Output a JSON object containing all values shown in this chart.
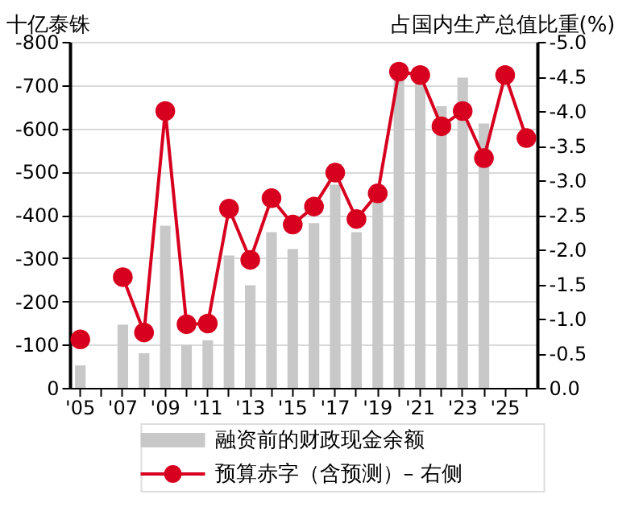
{
  "chart_data": {
    "type": "bar",
    "ylabel": "十亿泰铢",
    "y2label": "占国内生产总值比重(%)",
    "categories": [
      "'05",
      null,
      "'07",
      null,
      "'09",
      null,
      "'11",
      null,
      "'13",
      null,
      "'15",
      null,
      "'17",
      null,
      "'19",
      null,
      "'21",
      null,
      "'23",
      null,
      "'25",
      null
    ],
    "series": [
      {
        "name": "融资前的财政现金余额",
        "color": "#c8c8c8",
        "values": [
          -52,
          null,
          -146,
          -80,
          -375,
          -99,
          -110,
          -306,
          -237,
          -360,
          -321,
          -381,
          -470,
          -360,
          -437,
          -723,
          -711,
          -651,
          -717,
          -611,
          null,
          null
        ]
      },
      {
        "name": "预算赤字（含预测）– 右侧",
        "type": "line",
        "axis": "y2",
        "color": "#d7001e",
        "values": [
          -0.7,
          null,
          -1.6,
          -0.8,
          -4.0,
          -0.92,
          -0.93,
          -2.59,
          -1.85,
          -2.74,
          -2.36,
          -2.62,
          -3.11,
          -2.44,
          -2.81,
          -4.57,
          -4.52,
          -3.78,
          -4.0,
          -3.32,
          -4.52,
          -3.61
        ]
      }
    ],
    "ylim": [
      0,
      -800
    ],
    "yticks": [
      -800,
      -700,
      -600,
      -500,
      -400,
      -300,
      -200,
      -100,
      0
    ],
    "y2lim": [
      0,
      -5.0
    ],
    "y2ticks": [
      {
        "value": -5,
        "label": "-5.0"
      },
      {
        "value": -4.5,
        "label": "-4.5"
      },
      {
        "value": -4,
        "label": "-4.0"
      },
      {
        "value": -3.5,
        "label": "-3.5"
      },
      {
        "value": -3,
        "label": "-3.0"
      },
      {
        "value": -2.5,
        "label": "-2.5"
      },
      {
        "value": -2,
        "label": "-2.0"
      },
      {
        "value": -1.5,
        "label": "-1.5"
      },
      {
        "value": -1,
        "label": "-1.0"
      },
      {
        "value": -0.5,
        "label": "-0.5"
      },
      {
        "value": 0,
        "label": "0.0"
      }
    ],
    "grid": "y",
    "legend": "bottom",
    "marker": "circle",
    "line_style": "solid"
  }
}
